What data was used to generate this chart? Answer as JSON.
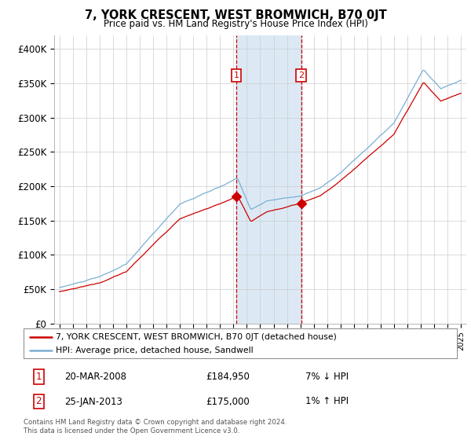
{
  "title": "7, YORK CRESCENT, WEST BROMWICH, B70 0JT",
  "subtitle": "Price paid vs. HM Land Registry's House Price Index (HPI)",
  "legend_line1": "7, YORK CRESCENT, WEST BROMWICH, B70 0JT (detached house)",
  "legend_line2": "HPI: Average price, detached house, Sandwell",
  "annotation1_date": "20-MAR-2008",
  "annotation1_price": "£184,950",
  "annotation1_hpi": "7% ↓ HPI",
  "annotation2_date": "25-JAN-2013",
  "annotation2_price": "£175,000",
  "annotation2_hpi": "1% ↑ HPI",
  "footer": "Contains HM Land Registry data © Crown copyright and database right 2024.\nThis data is licensed under the Open Government Licence v3.0.",
  "red_color": "#cc0000",
  "blue_color": "#7aafd4",
  "highlight_color": "#dce9f5",
  "annotation_box_color": "#cc0000",
  "ylim": [
    0,
    420000
  ],
  "yticks": [
    0,
    50000,
    100000,
    150000,
    200000,
    250000,
    300000,
    350000,
    400000
  ],
  "sale1_year": 2008.22,
  "sale2_year": 2013.07,
  "sale1_price": 184950,
  "sale2_price": 175000,
  "background_color": "#ffffff",
  "grid_color": "#cccccc"
}
